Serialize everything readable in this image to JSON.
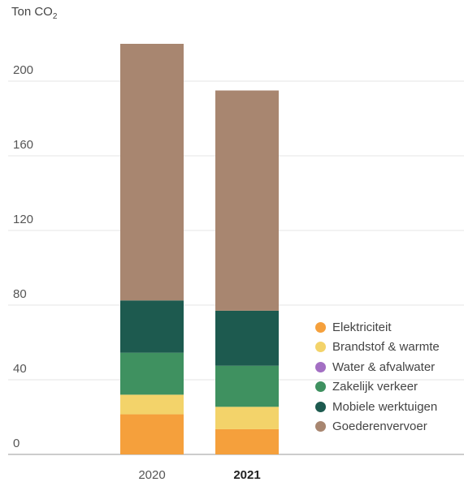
{
  "unit_label": {
    "main": "Ton CO",
    "sub": "2"
  },
  "chart_data": {
    "type": "bar",
    "stacked": true,
    "ylabel": "Ton CO2",
    "ylim": [
      0,
      220
    ],
    "yticks": [
      0,
      40,
      80,
      120,
      160,
      200
    ],
    "grid": true,
    "legend_position": "right",
    "categories": [
      "2020",
      "2021"
    ],
    "category_bold": [
      false,
      true
    ],
    "series": [
      {
        "name": "Elektriciteit",
        "color": "#f5a03c",
        "values": [
          21.5,
          13.5
        ]
      },
      {
        "name": "Brandstof & warmte",
        "color": "#f3d36a",
        "values": [
          10.5,
          12
        ]
      },
      {
        "name": "Water & afvalwater",
        "color": "#a36fc3",
        "values": [
          0,
          0
        ]
      },
      {
        "name": "Zakelijk verkeer",
        "color": "#3f9160",
        "values": [
          22.5,
          22
        ]
      },
      {
        "name": "Mobiele werktuigen",
        "color": "#1d5a4f",
        "values": [
          28,
          29.5
        ]
      },
      {
        "name": "Goederenvervoer",
        "color": "#a88670",
        "values": [
          137.5,
          118
        ]
      }
    ]
  }
}
